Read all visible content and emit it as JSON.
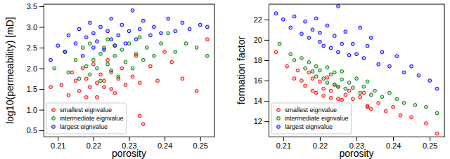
{
  "chart_data": [
    {
      "type": "scatter",
      "x_label": "porosity",
      "y_label": "log10(permeability) [mD]",
      "xlim": [
        0.206,
        0.254
      ],
      "ylim": [
        0.35,
        3.55
      ],
      "xticks": [
        0.21,
        0.22,
        0.23,
        0.24,
        0.25
      ],
      "yticks": [
        {
          "value": 0.5,
          "label": "0.5"
        },
        {
          "value": 1,
          "label": "1.0"
        },
        {
          "value": 1.5,
          "label": "1.5"
        },
        {
          "value": 2,
          "label": "2.0"
        },
        {
          "value": 2.5,
          "label": "2.5"
        },
        {
          "value": 3,
          "label": "3.0"
        },
        {
          "value": 3.5,
          "label": "3.5"
        }
      ],
      "legend": "lower left",
      "marker": "o",
      "series": [
        {
          "name": "smallest eignvalue",
          "color": "#ff0000",
          "x": [
            0.208,
            0.211,
            0.213,
            0.214,
            0.215,
            0.216,
            0.217,
            0.218,
            0.218,
            0.219,
            0.22,
            0.221,
            0.221,
            0.222,
            0.223,
            0.223,
            0.224,
            0.225,
            0.225,
            0.226,
            0.227,
            0.228,
            0.229,
            0.233,
            0.231,
            0.232,
            0.233,
            0.234,
            0.236,
            0.238,
            0.24,
            0.242,
            0.245,
            0.249,
            0.252
          ],
          "values": [
            1.55,
            1.6,
            1.35,
            1.9,
            1.7,
            1.45,
            2.0,
            1.3,
            1.75,
            1.55,
            2.1,
            1.65,
            1.3,
            1.85,
            1.55,
            1.7,
            2.2,
            1.5,
            1.9,
            1.4,
            1.75,
            2.0,
            1.6,
            0.85,
            1.8,
            2.3,
            1.65,
            0.65,
            2.05,
            1.7,
            2.4,
            2.15,
            1.75,
            1.45,
            2.7
          ]
        },
        {
          "name": "intermediate eignvalue",
          "color": "#008000",
          "x": [
            0.209,
            0.212,
            0.213,
            0.215,
            0.216,
            0.217,
            0.218,
            0.219,
            0.219,
            0.22,
            0.221,
            0.222,
            0.222,
            0.223,
            0.224,
            0.224,
            0.225,
            0.226,
            0.226,
            0.227,
            0.228,
            0.229,
            0.23,
            0.231,
            0.232,
            0.233,
            0.234,
            0.235,
            0.237,
            0.239,
            0.241,
            0.243,
            0.246,
            0.249,
            0.252
          ],
          "values": [
            2.0,
            2.4,
            1.9,
            2.2,
            1.75,
            2.5,
            2.05,
            1.85,
            2.6,
            2.2,
            2.0,
            2.35,
            1.7,
            2.5,
            2.1,
            2.7,
            1.95,
            2.3,
            2.55,
            1.8,
            2.45,
            2.15,
            2.6,
            2.0,
            2.35,
            2.75,
            2.2,
            2.5,
            2.3,
            2.6,
            2.85,
            2.4,
            2.6,
            2.5,
            2.3
          ]
        },
        {
          "name": "largest eignvalue",
          "color": "#0000ff",
          "x": [
            0.208,
            0.21,
            0.212,
            0.213,
            0.215,
            0.216,
            0.217,
            0.218,
            0.219,
            0.22,
            0.22,
            0.221,
            0.222,
            0.223,
            0.224,
            0.225,
            0.225,
            0.226,
            0.227,
            0.228,
            0.229,
            0.23,
            0.231,
            0.232,
            0.233,
            0.234,
            0.236,
            0.237,
            0.239,
            0.241,
            0.243,
            0.245,
            0.247,
            0.25,
            0.252
          ],
          "values": [
            2.2,
            2.55,
            2.4,
            2.8,
            2.6,
            2.95,
            2.3,
            2.75,
            3.1,
            2.5,
            2.85,
            2.65,
            3.0,
            2.45,
            2.9,
            2.7,
            3.2,
            2.55,
            2.8,
            3.05,
            2.6,
            2.9,
            3.4,
            2.7,
            2.95,
            3.15,
            2.8,
            3.0,
            2.85,
            3.2,
            2.9,
            3.1,
            2.95,
            3.05,
            3.0
          ]
        }
      ]
    },
    {
      "type": "scatter",
      "x_label": "porosity",
      "y_label": "formation factor",
      "xlim": [
        0.206,
        0.254
      ],
      "ylim": [
        10.5,
        23.5
      ],
      "xticks": [
        0.21,
        0.22,
        0.23,
        0.24,
        0.25
      ],
      "yticks": [
        12,
        14,
        16,
        18,
        20,
        22
      ],
      "legend": "lower left",
      "marker": "o",
      "series": [
        {
          "name": "smallest eignvalue",
          "color": "#ff0000",
          "x": [
            0.208,
            0.211,
            0.213,
            0.214,
            0.215,
            0.216,
            0.217,
            0.218,
            0.218,
            0.219,
            0.22,
            0.221,
            0.221,
            0.222,
            0.223,
            0.223,
            0.224,
            0.225,
            0.225,
            0.226,
            0.227,
            0.228,
            0.229,
            0.233,
            0.231,
            0.232,
            0.233,
            0.234,
            0.236,
            0.238,
            0.24,
            0.242,
            0.245,
            0.249,
            0.252
          ],
          "values": [
            18.8,
            17.4,
            16.2,
            17.0,
            16.0,
            15.5,
            16.8,
            15.0,
            16.2,
            14.8,
            15.9,
            15.2,
            14.5,
            16.3,
            14.3,
            15.0,
            15.6,
            14.2,
            15.4,
            14.1,
            14.6,
            15.0,
            14.2,
            13.5,
            14.4,
            14.8,
            13.4,
            13.2,
            13.8,
            13.0,
            13.4,
            12.6,
            12.4,
            11.8,
            10.8
          ]
        },
        {
          "name": "intermediate eignvalue",
          "color": "#008000",
          "x": [
            0.209,
            0.212,
            0.213,
            0.215,
            0.216,
            0.217,
            0.218,
            0.219,
            0.219,
            0.22,
            0.221,
            0.222,
            0.222,
            0.223,
            0.224,
            0.224,
            0.225,
            0.226,
            0.226,
            0.227,
            0.228,
            0.229,
            0.23,
            0.231,
            0.232,
            0.233,
            0.234,
            0.235,
            0.237,
            0.239,
            0.241,
            0.243,
            0.246,
            0.249,
            0.252
          ],
          "values": [
            19.6,
            18.6,
            18.0,
            18.2,
            17.2,
            17.8,
            16.9,
            17.4,
            16.4,
            17.0,
            16.2,
            17.3,
            15.8,
            16.6,
            15.6,
            16.8,
            15.4,
            16.1,
            16.9,
            15.2,
            15.8,
            15.3,
            16.2,
            14.8,
            15.4,
            15.9,
            14.6,
            15.0,
            14.4,
            14.8,
            14.2,
            13.8,
            13.6,
            13.4,
            12.8
          ]
        },
        {
          "name": "largest eignvalue",
          "color": "#0000ff",
          "x": [
            0.208,
            0.21,
            0.212,
            0.213,
            0.215,
            0.216,
            0.217,
            0.218,
            0.219,
            0.22,
            0.22,
            0.221,
            0.222,
            0.223,
            0.224,
            0.225,
            0.225,
            0.226,
            0.227,
            0.228,
            0.229,
            0.23,
            0.231,
            0.232,
            0.233,
            0.234,
            0.236,
            0.237,
            0.239,
            0.241,
            0.243,
            0.245,
            0.247,
            0.25,
            0.252
          ],
          "values": [
            22.6,
            22.0,
            21.2,
            22.3,
            20.6,
            21.8,
            20.2,
            21.0,
            22.1,
            19.8,
            20.7,
            19.4,
            21.4,
            19.2,
            20.4,
            18.8,
            23.3,
            19.6,
            20.8,
            18.5,
            19.6,
            18.6,
            21.2,
            18.2,
            19.4,
            20.2,
            17.6,
            18.8,
            17.4,
            18.4,
            16.8,
            17.4,
            16.5,
            16.0,
            15.2
          ]
        }
      ]
    }
  ]
}
